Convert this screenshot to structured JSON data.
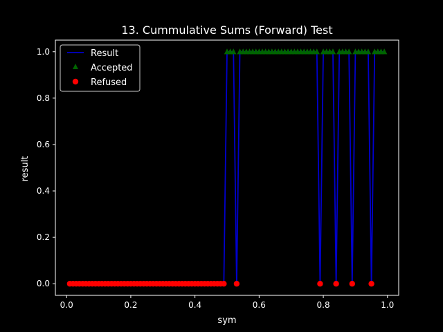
{
  "chart_data": {
    "type": "line",
    "title": "13. Cummulative Sums (Forward) Test",
    "xlabel": "sym",
    "ylabel": "result",
    "xlim": [
      -0.035,
      1.035
    ],
    "ylim": [
      -0.05,
      1.05
    ],
    "xticks": [
      0.0,
      0.2,
      0.4,
      0.6,
      0.8,
      1.0
    ],
    "yticks": [
      0.0,
      0.2,
      0.4,
      0.6,
      0.8,
      1.0
    ],
    "xtick_labels": [
      "0.0",
      "0.2",
      "0.4",
      "0.6",
      "0.8",
      "1.0"
    ],
    "ytick_labels": [
      "0.0",
      "0.2",
      "0.4",
      "0.6",
      "0.8",
      "1.0"
    ],
    "grid": false,
    "legend_position": "top-left",
    "legend": [
      "Result",
      "Accepted",
      "Refused"
    ],
    "colors": {
      "background": "#000000",
      "axes": "#ffffff",
      "result_line": "#0000cc",
      "accepted": "#006400",
      "refused": "#ff0000"
    },
    "series": [
      {
        "name": "Result",
        "x": [
          0.01,
          0.02,
          0.03,
          0.04,
          0.05,
          0.06,
          0.07,
          0.08,
          0.09,
          0.1,
          0.11,
          0.12,
          0.13,
          0.14,
          0.15,
          0.16,
          0.17,
          0.18,
          0.19,
          0.2,
          0.21,
          0.22,
          0.23,
          0.24,
          0.25,
          0.26,
          0.27,
          0.28,
          0.29,
          0.3,
          0.31,
          0.32,
          0.33,
          0.34,
          0.35,
          0.36,
          0.37,
          0.38,
          0.39,
          0.4,
          0.41,
          0.42,
          0.43,
          0.44,
          0.45,
          0.46,
          0.47,
          0.48,
          0.49,
          0.5,
          0.51,
          0.52,
          0.53,
          0.54,
          0.55,
          0.56,
          0.57,
          0.58,
          0.59,
          0.6,
          0.61,
          0.62,
          0.63,
          0.64,
          0.65,
          0.66,
          0.67,
          0.68,
          0.69,
          0.7,
          0.71,
          0.72,
          0.73,
          0.74,
          0.75,
          0.76,
          0.77,
          0.78,
          0.79,
          0.8,
          0.81,
          0.82,
          0.83,
          0.84,
          0.85,
          0.86,
          0.87,
          0.88,
          0.89,
          0.9,
          0.91,
          0.92,
          0.93,
          0.94,
          0.95,
          0.96,
          0.97,
          0.98,
          0.99
        ],
        "y": [
          0,
          0,
          0,
          0,
          0,
          0,
          0,
          0,
          0,
          0,
          0,
          0,
          0,
          0,
          0,
          0,
          0,
          0,
          0,
          0,
          0,
          0,
          0,
          0,
          0,
          0,
          0,
          0,
          0,
          0,
          0,
          0,
          0,
          0,
          0,
          0,
          0,
          0,
          0,
          0,
          0,
          0,
          0,
          0,
          0,
          0,
          0,
          0,
          0,
          1,
          1,
          1,
          0,
          1,
          1,
          1,
          1,
          1,
          1,
          1,
          1,
          1,
          1,
          1,
          1,
          1,
          1,
          1,
          1,
          1,
          1,
          1,
          1,
          1,
          1,
          1,
          1,
          1,
          0,
          1,
          1,
          1,
          1,
          0,
          1,
          1,
          1,
          1,
          0,
          1,
          1,
          1,
          1,
          1,
          0,
          1,
          1,
          1,
          1
        ]
      },
      {
        "name": "Accepted",
        "marker": "triangle",
        "x": [
          0.5,
          0.51,
          0.52,
          0.54,
          0.55,
          0.56,
          0.57,
          0.58,
          0.59,
          0.6,
          0.61,
          0.62,
          0.63,
          0.64,
          0.65,
          0.66,
          0.67,
          0.68,
          0.69,
          0.7,
          0.71,
          0.72,
          0.73,
          0.74,
          0.75,
          0.76,
          0.77,
          0.78,
          0.8,
          0.81,
          0.82,
          0.83,
          0.85,
          0.86,
          0.87,
          0.88,
          0.9,
          0.91,
          0.92,
          0.93,
          0.94,
          0.96,
          0.97,
          0.98,
          0.99
        ],
        "y": 1
      },
      {
        "name": "Refused",
        "marker": "circle",
        "x": [
          0.01,
          0.02,
          0.03,
          0.04,
          0.05,
          0.06,
          0.07,
          0.08,
          0.09,
          0.1,
          0.11,
          0.12,
          0.13,
          0.14,
          0.15,
          0.16,
          0.17,
          0.18,
          0.19,
          0.2,
          0.21,
          0.22,
          0.23,
          0.24,
          0.25,
          0.26,
          0.27,
          0.28,
          0.29,
          0.3,
          0.31,
          0.32,
          0.33,
          0.34,
          0.35,
          0.36,
          0.37,
          0.38,
          0.39,
          0.4,
          0.41,
          0.42,
          0.43,
          0.44,
          0.45,
          0.46,
          0.47,
          0.48,
          0.49,
          0.53,
          0.79,
          0.84,
          0.89,
          0.95
        ],
        "y": 0
      }
    ]
  }
}
